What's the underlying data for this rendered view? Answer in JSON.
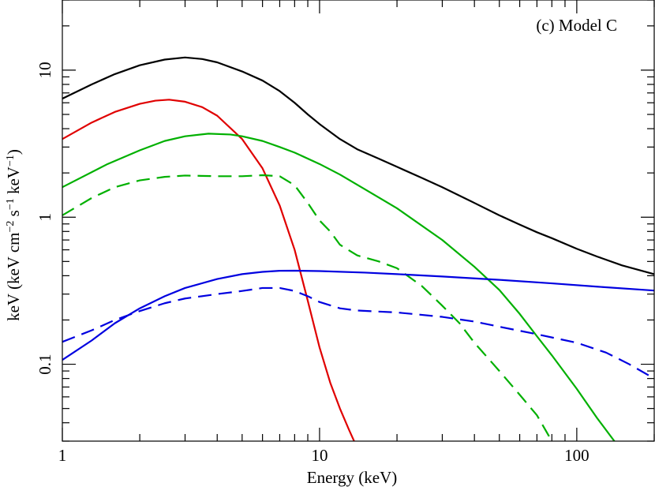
{
  "chart_data": {
    "type": "line",
    "title": "",
    "annotation": "(c) Model C",
    "xlabel": "Energy (keV)",
    "ylabel_parts": {
      "prefix": "keV (keV cm",
      "exp1": "−2",
      "mid1": " s",
      "exp2": "−1",
      "mid2": " keV",
      "exp3": "−1",
      "suffix": ")"
    },
    "x_scale": "log",
    "y_scale": "log",
    "xlim": [
      1,
      200
    ],
    "ylim": [
      0.03,
      30
    ],
    "x_ticks": [
      {
        "value": 1,
        "label": "1"
      },
      {
        "value": 10,
        "label": "10"
      },
      {
        "value": 100,
        "label": "100"
      }
    ],
    "y_ticks": [
      {
        "value": 0.1,
        "label": "0.1"
      },
      {
        "value": 1,
        "label": "1"
      },
      {
        "value": 10,
        "label": "10"
      }
    ],
    "grid": false,
    "legend": "none",
    "series": [
      {
        "id": "total",
        "color": "#000000",
        "dash": "solid",
        "points": [
          [
            1,
            6.4
          ],
          [
            1.3,
            8.0
          ],
          [
            1.6,
            9.4
          ],
          [
            2.0,
            10.8
          ],
          [
            2.5,
            11.8
          ],
          [
            3.0,
            12.2
          ],
          [
            3.5,
            11.9
          ],
          [
            4.0,
            11.3
          ],
          [
            5.0,
            9.8
          ],
          [
            6.0,
            8.5
          ],
          [
            7.0,
            7.2
          ],
          [
            8.0,
            6.0
          ],
          [
            9.0,
            5.0
          ],
          [
            10,
            4.3
          ],
          [
            12,
            3.4
          ],
          [
            14,
            2.9
          ],
          [
            17,
            2.5
          ],
          [
            20,
            2.2
          ],
          [
            25,
            1.85
          ],
          [
            30,
            1.6
          ],
          [
            40,
            1.25
          ],
          [
            50,
            1.03
          ],
          [
            60,
            0.89
          ],
          [
            70,
            0.79
          ],
          [
            80,
            0.72
          ],
          [
            100,
            0.61
          ],
          [
            120,
            0.54
          ],
          [
            150,
            0.47
          ],
          [
            200,
            0.41
          ]
        ]
      },
      {
        "id": "red-solid",
        "color": "#e00000",
        "dash": "solid",
        "points": [
          [
            1,
            3.4
          ],
          [
            1.3,
            4.4
          ],
          [
            1.6,
            5.2
          ],
          [
            2.0,
            5.9
          ],
          [
            2.3,
            6.2
          ],
          [
            2.6,
            6.3
          ],
          [
            3.0,
            6.1
          ],
          [
            3.5,
            5.6
          ],
          [
            4.0,
            4.9
          ],
          [
            5.0,
            3.4
          ],
          [
            6.0,
            2.15
          ],
          [
            7.0,
            1.2
          ],
          [
            8.0,
            0.6
          ],
          [
            9.0,
            0.27
          ],
          [
            10,
            0.13
          ],
          [
            11,
            0.075
          ],
          [
            12,
            0.05
          ],
          [
            13,
            0.036
          ],
          [
            14,
            0.027
          ]
        ]
      },
      {
        "id": "green-solid",
        "color": "#00b000",
        "dash": "solid",
        "points": [
          [
            1,
            1.6
          ],
          [
            1.5,
            2.3
          ],
          [
            2.0,
            2.85
          ],
          [
            2.5,
            3.3
          ],
          [
            3.0,
            3.55
          ],
          [
            3.7,
            3.7
          ],
          [
            4.5,
            3.65
          ],
          [
            5.0,
            3.55
          ],
          [
            6.0,
            3.3
          ],
          [
            7.0,
            3.0
          ],
          [
            8.0,
            2.75
          ],
          [
            10,
            2.3
          ],
          [
            12,
            1.95
          ],
          [
            15,
            1.55
          ],
          [
            20,
            1.15
          ],
          [
            30,
            0.7
          ],
          [
            40,
            0.46
          ],
          [
            50,
            0.32
          ],
          [
            60,
            0.22
          ],
          [
            70,
            0.155
          ],
          [
            80,
            0.115
          ],
          [
            100,
            0.068
          ],
          [
            120,
            0.043
          ],
          [
            140,
            0.03
          ],
          [
            155,
            0.025
          ]
        ]
      },
      {
        "id": "green-dashed",
        "color": "#00b000",
        "dash": "dashed",
        "points": [
          [
            1,
            1.03
          ],
          [
            1.3,
            1.35
          ],
          [
            1.6,
            1.6
          ],
          [
            2.0,
            1.78
          ],
          [
            2.5,
            1.88
          ],
          [
            3.0,
            1.92
          ],
          [
            4.0,
            1.9
          ],
          [
            5.0,
            1.9
          ],
          [
            6.0,
            1.93
          ],
          [
            7.0,
            1.9
          ],
          [
            8.0,
            1.65
          ],
          [
            9.0,
            1.25
          ],
          [
            10,
            0.95
          ],
          [
            11,
            0.8
          ],
          [
            12,
            0.65
          ],
          [
            14,
            0.55
          ],
          [
            17,
            0.5
          ],
          [
            20,
            0.45
          ],
          [
            25,
            0.34
          ],
          [
            30,
            0.25
          ],
          [
            35,
            0.19
          ],
          [
            40,
            0.14
          ],
          [
            50,
            0.09
          ],
          [
            60,
            0.062
          ],
          [
            70,
            0.045
          ],
          [
            80,
            0.03
          ]
        ]
      },
      {
        "id": "blue-solid",
        "color": "#0000e0",
        "dash": "solid",
        "points": [
          [
            1,
            0.107
          ],
          [
            1.3,
            0.145
          ],
          [
            1.6,
            0.19
          ],
          [
            2.0,
            0.24
          ],
          [
            2.5,
            0.29
          ],
          [
            3.0,
            0.33
          ],
          [
            4.0,
            0.38
          ],
          [
            5.0,
            0.41
          ],
          [
            6.0,
            0.425
          ],
          [
            7.0,
            0.432
          ],
          [
            8.0,
            0.433
          ],
          [
            10,
            0.43
          ],
          [
            15,
            0.42
          ],
          [
            20,
            0.41
          ],
          [
            30,
            0.395
          ],
          [
            50,
            0.375
          ],
          [
            80,
            0.355
          ],
          [
            120,
            0.337
          ],
          [
            200,
            0.317
          ]
        ]
      },
      {
        "id": "blue-dashed",
        "color": "#0000e0",
        "dash": "dashed",
        "points": [
          [
            1,
            0.142
          ],
          [
            1.3,
            0.17
          ],
          [
            1.6,
            0.2
          ],
          [
            2.0,
            0.23
          ],
          [
            2.5,
            0.26
          ],
          [
            3.0,
            0.28
          ],
          [
            4.0,
            0.3
          ],
          [
            5.0,
            0.315
          ],
          [
            6.0,
            0.33
          ],
          [
            7.0,
            0.33
          ],
          [
            8.0,
            0.315
          ],
          [
            9.0,
            0.29
          ],
          [
            10,
            0.265
          ],
          [
            12,
            0.24
          ],
          [
            14,
            0.232
          ],
          [
            20,
            0.225
          ],
          [
            30,
            0.21
          ],
          [
            40,
            0.195
          ],
          [
            50,
            0.18
          ],
          [
            70,
            0.16
          ],
          [
            100,
            0.14
          ],
          [
            130,
            0.12
          ],
          [
            160,
            0.1
          ],
          [
            200,
            0.08
          ]
        ]
      }
    ]
  }
}
